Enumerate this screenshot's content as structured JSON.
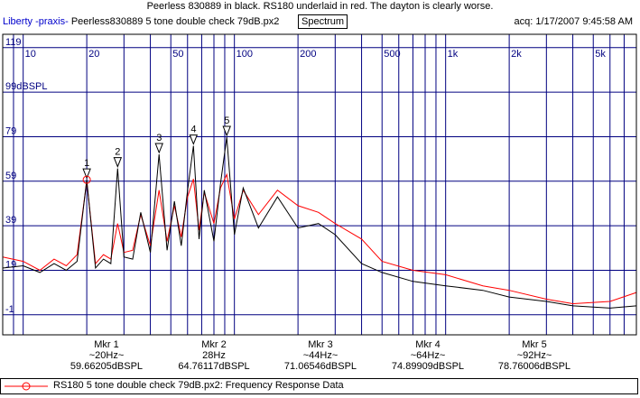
{
  "title": "Peerless 830889 in black. RS180 underlaid in red. The dayton is clearly worse.",
  "header": {
    "app_name": "Liberty -praxis-",
    "file_name": "Peerless830889 5 tone double check 79dB.px2",
    "mode_button": "Spectrum",
    "acq": "acq: 1/17/2007 9:45:58 AM"
  },
  "chart_data": {
    "type": "line",
    "xscale": "log",
    "xlim": [
      8,
      8000
    ],
    "ylim": [
      -10,
      125
    ],
    "x_ticks": [
      10,
      20,
      50,
      100,
      200,
      500,
      1000,
      2000,
      5000
    ],
    "x_tick_labels": [
      "10",
      "20",
      "50",
      "100",
      "200",
      "500",
      "1k",
      "2k",
      "5k"
    ],
    "y_ticks": [
      -1,
      19,
      39,
      59,
      79,
      99,
      119
    ],
    "y_tick_labels": [
      "-1",
      "19",
      "39",
      "59",
      "79",
      "99dBSPL",
      "119"
    ],
    "grid": true,
    "colors": {
      "primary": "#000000",
      "underlay": "#ff0000",
      "grid": "#000080",
      "axis_text": "#000080"
    },
    "markers": [
      {
        "label": "1",
        "freq": 20,
        "level": 59.66
      },
      {
        "label": "2",
        "freq": 28,
        "level": 64.76
      },
      {
        "label": "3",
        "freq": 44,
        "level": 71.07
      },
      {
        "label": "4",
        "freq": 64,
        "level": 74.9
      },
      {
        "label": "5",
        "freq": 92,
        "level": 78.76
      }
    ],
    "series": [
      {
        "color": "#000000",
        "points": [
          [
            8,
            20
          ],
          [
            10,
            21
          ],
          [
            12,
            18
          ],
          [
            14,
            22
          ],
          [
            16,
            19
          ],
          [
            18,
            23
          ],
          [
            20,
            59.66
          ],
          [
            22,
            20
          ],
          [
            24,
            24
          ],
          [
            26,
            22
          ],
          [
            28,
            64.76
          ],
          [
            30,
            25
          ],
          [
            33,
            24
          ],
          [
            36,
            45
          ],
          [
            40,
            27
          ],
          [
            44,
            71.07
          ],
          [
            48,
            28
          ],
          [
            52,
            50
          ],
          [
            56,
            30
          ],
          [
            60,
            55
          ],
          [
            64,
            74.9
          ],
          [
            68,
            33
          ],
          [
            72,
            55
          ],
          [
            80,
            32
          ],
          [
            86,
            58
          ],
          [
            92,
            78.76
          ],
          [
            100,
            35
          ],
          [
            110,
            56
          ],
          [
            130,
            38
          ],
          [
            160,
            52
          ],
          [
            200,
            38
          ],
          [
            250,
            40
          ],
          [
            300,
            35
          ],
          [
            400,
            22
          ],
          [
            500,
            18
          ],
          [
            700,
            14
          ],
          [
            1000,
            12
          ],
          [
            1500,
            10
          ],
          [
            2000,
            7
          ],
          [
            3000,
            5
          ],
          [
            4000,
            3
          ],
          [
            6000,
            2
          ],
          [
            8000,
            3
          ]
        ]
      },
      {
        "name": "RS180 5 tone double check 79dB.px2:  Frequency Response Data",
        "color": "#ff0000",
        "points": [
          [
            8,
            25
          ],
          [
            10,
            23
          ],
          [
            12,
            19
          ],
          [
            14,
            24
          ],
          [
            16,
            21
          ],
          [
            18,
            26
          ],
          [
            20,
            59
          ],
          [
            22,
            22
          ],
          [
            24,
            26
          ],
          [
            26,
            24
          ],
          [
            28,
            40
          ],
          [
            30,
            27
          ],
          [
            33,
            28
          ],
          [
            36,
            44
          ],
          [
            40,
            30
          ],
          [
            44,
            55
          ],
          [
            48,
            32
          ],
          [
            52,
            48
          ],
          [
            56,
            34
          ],
          [
            60,
            52
          ],
          [
            64,
            60
          ],
          [
            68,
            37
          ],
          [
            72,
            54
          ],
          [
            80,
            40
          ],
          [
            86,
            56
          ],
          [
            92,
            62
          ],
          [
            100,
            42
          ],
          [
            110,
            55
          ],
          [
            130,
            44
          ],
          [
            160,
            55
          ],
          [
            200,
            48
          ],
          [
            250,
            45
          ],
          [
            300,
            40
          ],
          [
            400,
            33
          ],
          [
            500,
            23
          ],
          [
            700,
            19
          ],
          [
            1000,
            17
          ],
          [
            1500,
            12
          ],
          [
            2000,
            10
          ],
          [
            3000,
            6
          ],
          [
            4000,
            4
          ],
          [
            6000,
            5
          ],
          [
            8000,
            9
          ]
        ]
      }
    ]
  },
  "marker_readout": [
    {
      "name": "Mkr 1",
      "freq": "~20Hz~",
      "level": "59.66205dBSPL"
    },
    {
      "name": "Mkr 2",
      "freq": "28Hz",
      "level": "64.76117dBSPL"
    },
    {
      "name": "Mkr 3",
      "freq": "~44Hz~",
      "level": "71.06546dBSPL"
    },
    {
      "name": "Mkr 4",
      "freq": "~64Hz~",
      "level": "74.89909dBSPL"
    },
    {
      "name": "Mkr 5",
      "freq": "~92Hz~",
      "level": "78.76006dBSPL"
    }
  ],
  "legend": {
    "text": "RS180 5 tone double check 79dB.px2:  Frequency Response Data",
    "color": "#ff0000"
  }
}
